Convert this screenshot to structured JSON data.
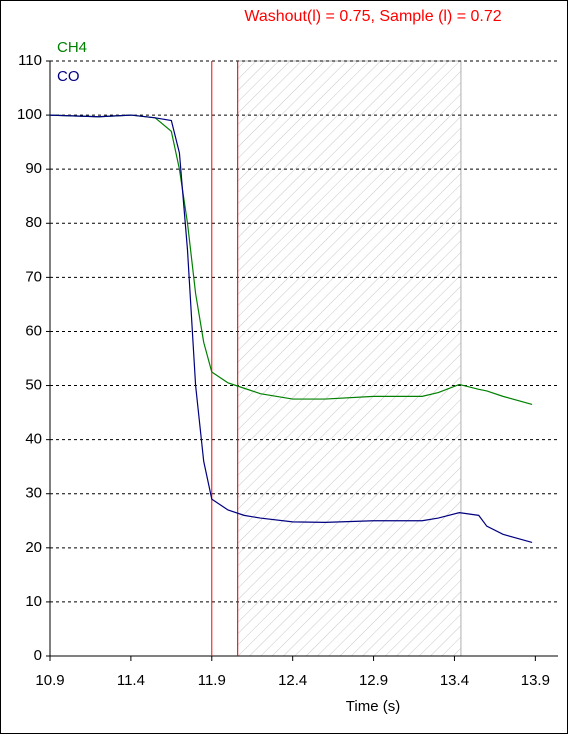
{
  "chart_data": {
    "type": "line",
    "title": "Washout(l) = 0.75, Sample (l) = 0.72",
    "x_label": "Time (s)",
    "x": [
      10.9,
      11.2,
      11.4,
      11.55,
      11.65,
      11.7,
      11.75,
      11.8,
      11.85,
      11.9,
      12.0,
      12.1,
      12.2,
      12.4,
      12.6,
      12.9,
      13.2,
      13.3,
      13.43,
      13.55,
      13.6,
      13.7,
      13.88
    ],
    "series": [
      {
        "name": "CH4",
        "color": "#008000",
        "values": [
          100,
          99.7,
          100,
          99.5,
          97,
          90,
          80,
          67,
          58,
          52.5,
          50.5,
          49.5,
          48.5,
          47.5,
          47.5,
          48,
          48,
          48.7,
          50.2,
          49.3,
          49,
          48,
          46.5
        ]
      },
      {
        "name": "CO",
        "color": "#000080",
        "values": [
          100,
          99.7,
          100,
          99.5,
          99,
          93,
          75,
          50,
          36,
          29,
          27,
          26,
          25.5,
          24.8,
          24.7,
          25,
          25,
          25.5,
          26.5,
          26,
          24,
          22.5,
          21
        ]
      }
    ],
    "vlines": [
      11.9,
      12.06
    ],
    "vline_color": "#ff0000",
    "shaded_region": [
      12.06,
      13.44
    ],
    "xlim": [
      10.9,
      14.04
    ],
    "ylim": [
      0,
      110
    ],
    "xticks": [
      10.9,
      11.4,
      11.9,
      12.4,
      12.9,
      13.4,
      13.9
    ],
    "yticks": [
      0,
      10,
      20,
      30,
      40,
      50,
      60,
      70,
      80,
      90,
      100,
      110
    ],
    "grid": true
  }
}
